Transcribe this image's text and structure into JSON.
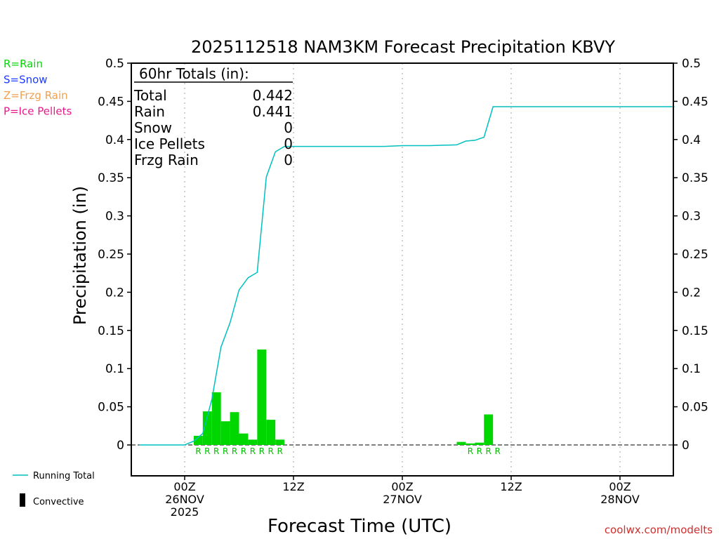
{
  "chart_data": {
    "type": "bar",
    "title": "2025112518 NAM3KM Forecast Precipitation KBVY",
    "xlabel": "Forecast Time (UTC)",
    "ylabel": "Precipitation (in)",
    "ylim": [
      -0.04,
      0.5
    ],
    "xlim_hours": [
      -6,
      54
    ],
    "yticks": [
      {
        "v": 0.5,
        "label": "0.5"
      },
      {
        "v": 0.45,
        "label": "0.45"
      },
      {
        "v": 0.4,
        "label": "0.4"
      },
      {
        "v": 0.35,
        "label": "0.35"
      },
      {
        "v": 0.3,
        "label": "0.3"
      },
      {
        "v": 0.25,
        "label": "0.25"
      },
      {
        "v": 0.2,
        "label": "0.2"
      },
      {
        "v": 0.15,
        "label": "0.15"
      },
      {
        "v": 0.1,
        "label": "0.1"
      },
      {
        "v": 0.05,
        "label": "0.05"
      },
      {
        "v": 0,
        "label": "0"
      }
    ],
    "xticks": [
      {
        "h": 0,
        "lines": [
          "00Z",
          "26NOV",
          "2025"
        ]
      },
      {
        "h": 12,
        "lines": [
          "12Z"
        ]
      },
      {
        "h": 24,
        "lines": [
          "00Z",
          "27NOV"
        ]
      },
      {
        "h": 36,
        "lines": [
          "12Z"
        ]
      },
      {
        "h": 48,
        "lines": [
          "00Z",
          "28NOV"
        ]
      }
    ],
    "grid_hours": [
      0,
      12,
      24,
      36,
      48
    ],
    "hourly_precip": {
      "hours": [
        2,
        3,
        4,
        5,
        6,
        7,
        8,
        9,
        10,
        11,
        12,
        31,
        32,
        33,
        34
      ],
      "values": [
        0.012,
        0.044,
        0.069,
        0.031,
        0.043,
        0.015,
        0.007,
        0.125,
        0.033,
        0.007,
        0.0,
        0.004,
        0.002,
        0.003,
        0.04
      ],
      "color": "#00d700"
    },
    "precip_type_markers": {
      "hours": [
        1.5,
        2.5,
        3.5,
        4.5,
        5.5,
        6.5,
        7.5,
        8.5,
        9.5,
        10.5,
        31.5,
        32.5,
        33.5,
        34.5
      ],
      "label": "R",
      "color": "#00c000"
    },
    "running_total": {
      "name": "Running Total",
      "color": "#00c0c0",
      "points": [
        [
          -5,
          0
        ],
        [
          0,
          0
        ],
        [
          1,
          0.005
        ],
        [
          2,
          0.015
        ],
        [
          3,
          0.06
        ],
        [
          4,
          0.128
        ],
        [
          5,
          0.16
        ],
        [
          6,
          0.203
        ],
        [
          7,
          0.219
        ],
        [
          8,
          0.226
        ],
        [
          9,
          0.351
        ],
        [
          10,
          0.384
        ],
        [
          11,
          0.391
        ],
        [
          12,
          0.391
        ],
        [
          18,
          0.391
        ],
        [
          22,
          0.391
        ],
        [
          24,
          0.392
        ],
        [
          27,
          0.392
        ],
        [
          30,
          0.393
        ],
        [
          31,
          0.398
        ],
        [
          32,
          0.399
        ],
        [
          33,
          0.403
        ],
        [
          34,
          0.443
        ],
        [
          54,
          0.443
        ]
      ]
    },
    "totals_box": {
      "title": "60hr Totals (in):",
      "rows": [
        {
          "label": "Total",
          "value": "0.442"
        },
        {
          "label": "Rain",
          "value": "0.441"
        },
        {
          "label": "Snow",
          "value": "0"
        },
        {
          "label": "Ice Pellets",
          "value": "0"
        },
        {
          "label": "Frzg Rain",
          "value": "0"
        }
      ]
    },
    "type_legend": [
      {
        "text": "R=Rain",
        "color": "#00dc00"
      },
      {
        "text": "S=Snow",
        "color": "#1e3cff"
      },
      {
        "text": "Z=Frzg Rain",
        "color": "#f0a050"
      },
      {
        "text": "P=Ice Pellets",
        "color": "#e6198c"
      }
    ],
    "series_legend": [
      {
        "text": "Running Total",
        "kind": "line",
        "color": "#00c0c0"
      },
      {
        "text": "Convective",
        "kind": "bar",
        "color": "#000000"
      }
    ],
    "credit": {
      "text": "coolwx.com/modelts",
      "color": "#d22d2d"
    }
  }
}
